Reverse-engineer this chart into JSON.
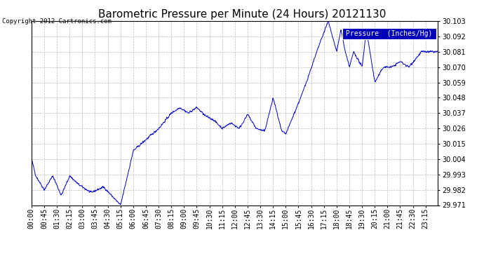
{
  "title": "Barometric Pressure per Minute (24 Hours) 20121130",
  "copyright": "Copyright 2012 Cartronics.com",
  "legend_label": "Pressure  (Inches/Hg)",
  "ylim": [
    29.971,
    30.103
  ],
  "yticks": [
    29.971,
    29.982,
    29.993,
    30.004,
    30.015,
    30.026,
    30.037,
    30.048,
    30.059,
    30.07,
    30.081,
    30.092,
    30.103
  ],
  "xtick_labels": [
    "00:00",
    "00:45",
    "01:30",
    "02:15",
    "03:00",
    "03:45",
    "04:30",
    "05:15",
    "06:00",
    "06:45",
    "07:30",
    "08:15",
    "09:00",
    "09:45",
    "10:30",
    "11:15",
    "12:00",
    "12:45",
    "13:30",
    "14:15",
    "15:00",
    "15:45",
    "16:30",
    "17:15",
    "18:00",
    "18:45",
    "19:30",
    "20:15",
    "21:00",
    "21:45",
    "22:30",
    "23:15"
  ],
  "line_color": "#0000cc",
  "background_color": "#ffffff",
  "grid_color": "#bbbbbb",
  "title_fontsize": 11,
  "copyright_fontsize": 6.5,
  "tick_fontsize": 7,
  "legend_bg": "#0000bb",
  "legend_fg": "#ffffff",
  "legend_fontsize": 7
}
